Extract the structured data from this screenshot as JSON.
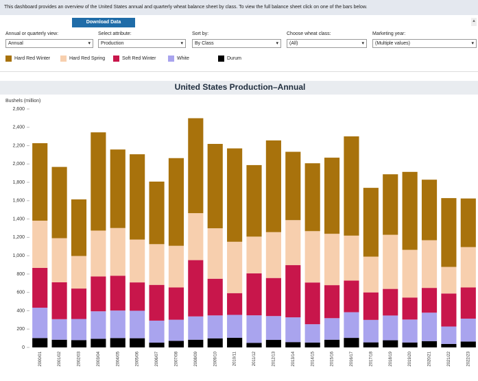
{
  "header": {
    "intro": "This dashboard provides an overview of the United States annual and quarterly wheat balance sheet by class. To view the full balance sheet click on one of the bars below.",
    "button": "Download Data"
  },
  "controls": [
    {
      "label": "Annual or quarterly view:",
      "value": "Annual"
    },
    {
      "label": "Select attribute:",
      "value": "Production"
    },
    {
      "label": "Sort by:",
      "value": "By Class"
    },
    {
      "label": "Choose wheat class:",
      "value": "(All)"
    },
    {
      "label": "Marketing year:",
      "value": "(Multiple values)"
    }
  ],
  "chart_data": {
    "type": "stacked_bar",
    "title": "United States Production–Annual",
    "y_label": "Bushels (million)",
    "categories": [
      "2000/01",
      "2001/02",
      "2002/03",
      "2003/04",
      "2004/05",
      "2005/06",
      "2006/07",
      "2007/08",
      "2008/09",
      "2009/10",
      "2010/11",
      "2011/12",
      "2012/13",
      "2013/14",
      "2014/15",
      "2015/16",
      "2016/17",
      "2017/18",
      "2018/19",
      "2019/20",
      "2020/21",
      "2021/22",
      "2022/23"
    ],
    "series": [
      {
        "name": "Durum",
        "color": "#000000",
        "values": [
          102,
          84,
          80,
          94,
          102,
          100,
          52,
          72,
          84,
          99,
          105,
          50,
          82,
          58,
          53,
          84,
          104,
          55,
          78,
          54,
          69,
          38,
          64
        ]
      },
      {
        "name": "White",
        "color": "#a9a4ee",
        "values": [
          331,
          224,
          230,
          300,
          300,
          300,
          240,
          230,
          254,
          250,
          250,
          300,
          260,
          270,
          200,
          235,
          280,
          245,
          270,
          250,
          310,
          190,
          250
        ]
      },
      {
        "name": "Soft Red Winter",
        "color": "#c8164b",
        "values": [
          434,
          402,
          332,
          380,
          380,
          309,
          390,
          352,
          614,
          400,
          237,
          458,
          415,
          570,
          455,
          360,
          345,
          300,
          290,
          240,
          270,
          360,
          340
        ]
      },
      {
        "name": "Hard Red Spring",
        "color": "#f7cfae",
        "values": [
          515,
          481,
          355,
          500,
          520,
          467,
          444,
          454,
          512,
          550,
          560,
          400,
          500,
          490,
          560,
          560,
          490,
          390,
          590,
          520,
          520,
          290,
          440
        ]
      },
      {
        "name": "Hard Red Winter",
        "color": "#a8720c",
        "values": [
          845,
          777,
          617,
          1071,
          856,
          930,
          682,
          956,
          1035,
          920,
          1018,
          780,
          1000,
          745,
          740,
          830,
          1082,
          750,
          660,
          850,
          660,
          750,
          530
        ]
      }
    ],
    "legend_order": [
      4,
      3,
      2,
      1,
      0
    ],
    "ylim": [
      0,
      2600
    ],
    "yticks": [
      0,
      200,
      400,
      600,
      800,
      {
        "value": 1000,
        "label": "1,000"
      },
      {
        "value": 1200,
        "label": "1,200"
      },
      {
        "value": 1400,
        "label": "1,400"
      },
      {
        "value": 1600,
        "label": "1,600"
      },
      {
        "value": 1800,
        "label": "1,800"
      },
      {
        "value": 2000,
        "label": "2,000"
      },
      {
        "value": 2200,
        "label": "2,200"
      },
      {
        "value": 2400,
        "label": "2,400"
      },
      {
        "value": 2600,
        "label": "2,600"
      }
    ]
  }
}
